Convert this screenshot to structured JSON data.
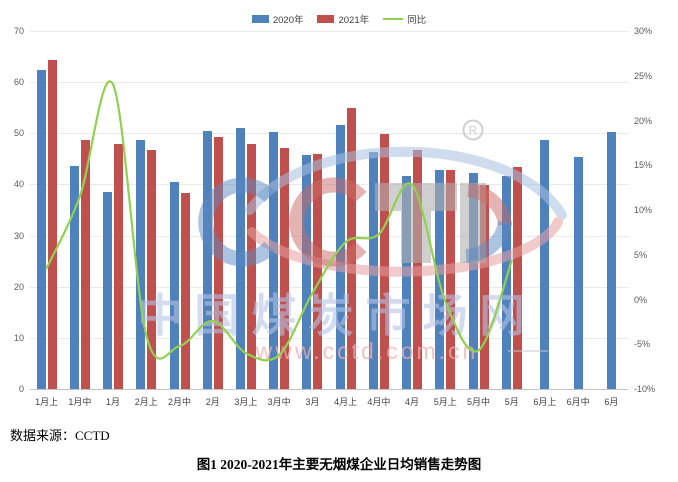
{
  "chart_data": {
    "type": "bar+line",
    "title": "",
    "categories": [
      "1月上",
      "1月中",
      "1月",
      "2月上",
      "2月中",
      "2月",
      "3月上",
      "3月中",
      "3月",
      "4月上",
      "4月中",
      "4月",
      "5月上",
      "5月中",
      "5月",
      "6月上",
      "6月中",
      "6月"
    ],
    "series": [
      {
        "name": "2020年",
        "type": "bar",
        "axis": "left",
        "color": "#4f81bd",
        "values": [
          62.3,
          43.6,
          38.6,
          48.7,
          40.5,
          50.4,
          51.0,
          50.2,
          45.7,
          51.7,
          46.4,
          41.6,
          42.9,
          42.3,
          41.7,
          48.6,
          45.4,
          50.2
        ]
      },
      {
        "name": "2021年",
        "type": "bar",
        "axis": "left",
        "color": "#c0504d",
        "values": [
          64.4,
          48.6,
          47.9,
          46.8,
          38.4,
          49.2,
          48.0,
          47.1,
          46.0,
          55.0,
          49.8,
          46.8,
          42.8,
          39.9,
          43.5,
          null,
          null,
          null
        ]
      },
      {
        "name": "同比",
        "type": "line",
        "axis": "right",
        "color": "#92d050",
        "values": [
          3.5,
          11.5,
          24.0,
          -4.0,
          -5.2,
          -2.4,
          -6.0,
          -6.2,
          0.7,
          6.4,
          7.3,
          12.8,
          -0.2,
          -5.7,
          4.3,
          null,
          null,
          null
        ]
      }
    ],
    "left_axis": {
      "min": 0,
      "max": 70,
      "step": 10,
      "ticks": [
        "0",
        "10",
        "20",
        "30",
        "40",
        "50",
        "60",
        "70"
      ]
    },
    "right_axis": {
      "min": -10,
      "max": 30,
      "step": 5,
      "ticks": [
        "-10%",
        "-5%",
        "0%",
        "5%",
        "10%",
        "15%",
        "20%",
        "25%",
        "30%"
      ]
    },
    "grid": true,
    "legend_position": "top"
  },
  "watermark": {
    "logo": "CCTD",
    "registered_mark": "R",
    "text_cn": "中国煤炭市场网",
    "url": "www.cctd.com.cn",
    "color_blue": "#a8c0e0",
    "color_red": "#e6a0a0",
    "color_gray": "#b0b0b0",
    "text_cn_color": "#b5c4e6",
    "url_color": "#efb0b0"
  },
  "footer": {
    "source": "数据来源：CCTD",
    "caption": "图1 2020-2021年主要无烟煤企业日均销售走势图"
  }
}
